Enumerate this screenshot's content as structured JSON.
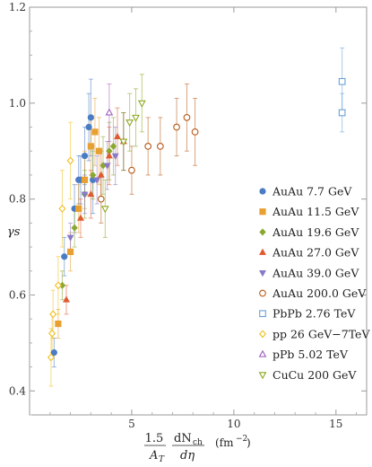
{
  "chart_data": {
    "type": "scatter",
    "title": "",
    "ylabel": "γs",
    "xlabel": "1.5/A_T dN_ch/dη (fm^-2)",
    "xlabel_parts": {
      "num1": "1.5",
      "den1": "A",
      "den1_sub": "T",
      "num2": "dN",
      "num2_sub": "ch",
      "den2": "dη",
      "unit": "(fm",
      "unit_exp": "−2",
      "unit_close": ")"
    },
    "xlim": [
      0,
      16.5
    ],
    "ylim": [
      0.35,
      1.2
    ],
    "xticks": [
      {
        "v": 5,
        "label": "5"
      },
      {
        "v": 10,
        "label": "10"
      },
      {
        "v": 15,
        "label": "15"
      }
    ],
    "yticks": [
      {
        "v": 0.4,
        "label": "0.4"
      },
      {
        "v": 0.6,
        "label": "0.6"
      },
      {
        "v": 0.8,
        "label": "0.8"
      },
      {
        "v": 1.0,
        "label": "1.0"
      },
      {
        "v": 1.2,
        "label": "1.2"
      }
    ],
    "legend_position": "right",
    "series": [
      {
        "name": "AuAu 7.7 GeV",
        "marker": "circle",
        "filled": true,
        "color": "#4a7cc4",
        "points": [
          [
            1.2,
            0.48,
            0.03
          ],
          [
            1.7,
            0.68,
            0.04
          ],
          [
            2.2,
            0.78,
            0.05
          ],
          [
            2.5,
            0.84,
            0.05
          ],
          [
            2.7,
            0.89,
            0.06
          ],
          [
            2.9,
            0.95,
            0.07
          ],
          [
            3.0,
            0.97,
            0.08
          ],
          [
            3.1,
            0.84,
            0.07
          ],
          [
            2.4,
            0.84,
            0.05
          ]
        ]
      },
      {
        "name": "AuAu 11.5 GeV",
        "marker": "square",
        "filled": true,
        "color": "#e8a030",
        "points": [
          [
            1.4,
            0.54,
            0.03
          ],
          [
            2.0,
            0.69,
            0.04
          ],
          [
            2.4,
            0.78,
            0.05
          ],
          [
            2.7,
            0.84,
            0.06
          ],
          [
            3.0,
            0.91,
            0.06
          ],
          [
            3.2,
            0.94,
            0.07
          ],
          [
            3.4,
            0.9,
            0.07
          ]
        ]
      },
      {
        "name": "AuAu 19.6 GeV",
        "marker": "diamond",
        "filled": true,
        "color": "#8aa830",
        "points": [
          [
            1.6,
            0.62,
            0.03
          ],
          [
            2.2,
            0.74,
            0.04
          ],
          [
            2.7,
            0.81,
            0.05
          ],
          [
            3.1,
            0.85,
            0.05
          ],
          [
            3.6,
            0.87,
            0.06
          ],
          [
            3.9,
            0.9,
            0.06
          ],
          [
            4.1,
            0.91,
            0.06
          ]
        ]
      },
      {
        "name": "AuAu 27.0 GeV",
        "marker": "triangle-up",
        "filled": true,
        "color": "#e05a30",
        "points": [
          [
            1.8,
            0.59,
            0.03
          ],
          [
            2.5,
            0.76,
            0.04
          ],
          [
            3.0,
            0.81,
            0.05
          ],
          [
            3.5,
            0.85,
            0.05
          ],
          [
            3.9,
            0.89,
            0.06
          ],
          [
            4.3,
            0.93,
            0.06
          ],
          [
            4.6,
            0.92,
            0.06
          ]
        ]
      },
      {
        "name": "AuAu 39.0 GeV",
        "marker": "triangle-down",
        "filled": true,
        "color": "#8a78c8",
        "points": [
          [
            2.0,
            0.72,
            0.03
          ],
          [
            2.7,
            0.81,
            0.04
          ],
          [
            3.3,
            0.84,
            0.05
          ],
          [
            3.8,
            0.87,
            0.05
          ],
          [
            4.2,
            0.89,
            0.06
          ],
          [
            4.6,
            0.92,
            0.06
          ]
        ]
      },
      {
        "name": "AuAu 200.0 GeV",
        "marker": "circle",
        "filled": false,
        "color": "#b85a18",
        "points": [
          [
            3.5,
            0.8,
            0.05
          ],
          [
            5.0,
            0.86,
            0.05
          ],
          [
            5.8,
            0.91,
            0.06
          ],
          [
            6.4,
            0.91,
            0.06
          ],
          [
            7.2,
            0.95,
            0.06
          ],
          [
            7.7,
            0.97,
            0.07
          ],
          [
            8.1,
            0.94,
            0.07
          ]
        ]
      },
      {
        "name": "PbPb 2.76 TeV",
        "marker": "square",
        "filled": false,
        "color": "#6aa0d8",
        "points": [
          [
            15.3,
            1.045,
            0.07
          ],
          [
            15.3,
            0.98,
            0.04
          ]
        ]
      },
      {
        "name": "pp 26 GeV−7TeV",
        "marker": "diamond",
        "filled": false,
        "color": "#f0c020",
        "points": [
          [
            1.05,
            0.47,
            0.06
          ],
          [
            1.1,
            0.52,
            0.04
          ],
          [
            1.15,
            0.56,
            0.05
          ],
          [
            1.4,
            0.62,
            0.06
          ],
          [
            1.6,
            0.78,
            0.08
          ],
          [
            2.0,
            0.88,
            0.08
          ]
        ]
      },
      {
        "name": "pPb 5.02 TeV",
        "marker": "triangle-up",
        "filled": false,
        "color": "#a060c0",
        "points": [
          [
            3.9,
            0.98,
            0.06
          ]
        ]
      },
      {
        "name": "CuCu 200 GeV",
        "marker": "triangle-down",
        "filled": false,
        "color": "#8aa820",
        "points": [
          [
            3.7,
            0.78,
            0.06
          ],
          [
            4.6,
            0.92,
            0.06
          ],
          [
            4.9,
            0.96,
            0.06
          ],
          [
            5.2,
            0.97,
            0.06
          ],
          [
            5.5,
            1.0,
            0.06
          ]
        ]
      }
    ]
  }
}
